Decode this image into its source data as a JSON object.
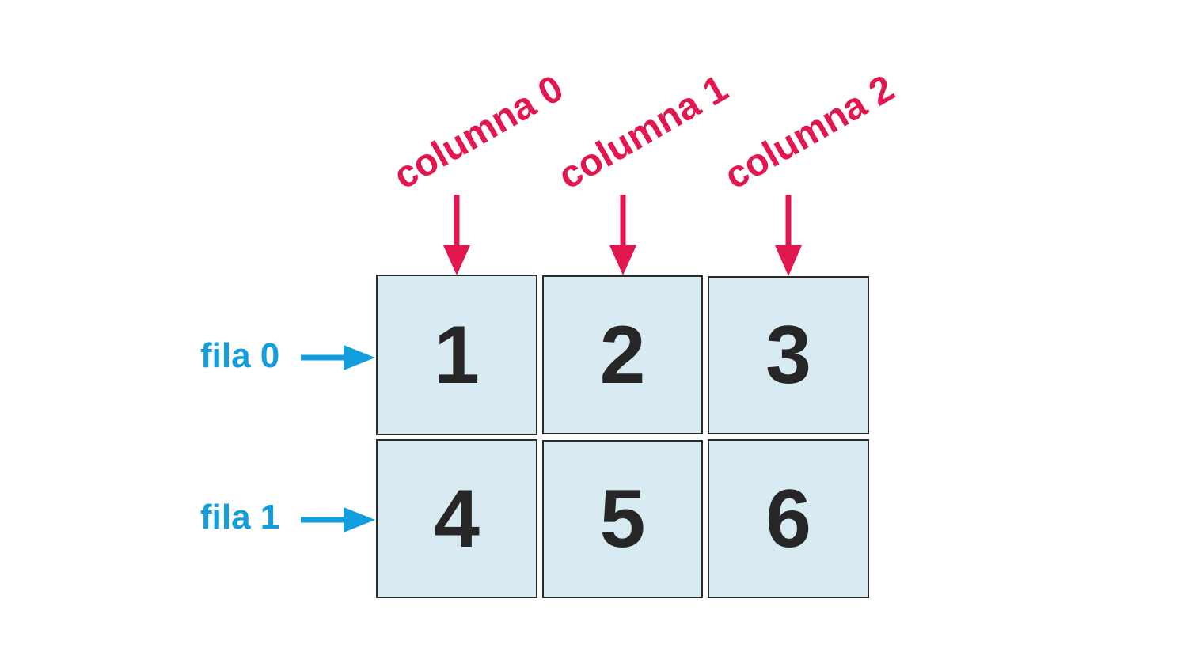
{
  "colors": {
    "column_accent": "#e3174f",
    "row_accent": "#139ddc",
    "cell_fill": "#d8ebf2",
    "cell_border": "#2b2b2b",
    "cell_text": "#262626"
  },
  "columns": [
    {
      "label": "columna 0"
    },
    {
      "label": "columna 1"
    },
    {
      "label": "columna 2"
    }
  ],
  "rows": [
    {
      "label": "fila 0"
    },
    {
      "label": "fila 1"
    }
  ],
  "grid": [
    [
      "1",
      "2",
      "3"
    ],
    [
      "4",
      "5",
      "6"
    ]
  ]
}
